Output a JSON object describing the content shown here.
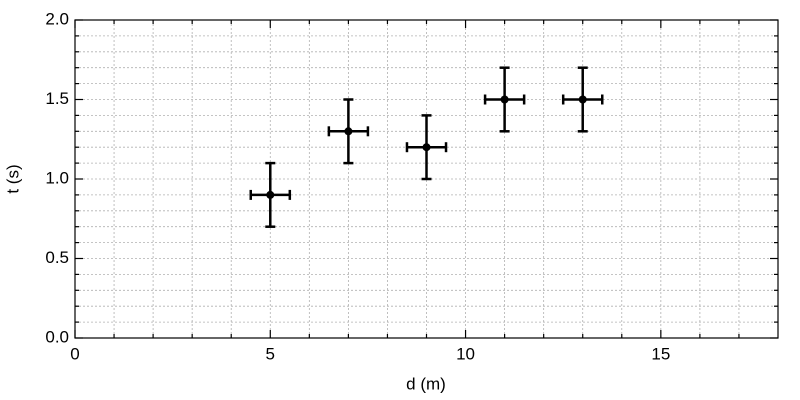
{
  "chart_data": {
    "type": "errorbar_scatter",
    "xlabel": "d (m)",
    "ylabel": "t (s)",
    "xlim": [
      0,
      18
    ],
    "ylim": [
      0,
      2
    ],
    "xticks": [
      0,
      5,
      10,
      15
    ],
    "yticks": [
      {
        "value": 0,
        "label": "0.0"
      },
      {
        "value": 0.5,
        "label": "0.5"
      },
      {
        "value": 1,
        "label": "1.0"
      },
      {
        "value": 1.5,
        "label": "1.5"
      },
      {
        "value": 2,
        "label": "2.0"
      }
    ],
    "xminorticks": [
      1,
      2,
      3,
      4,
      6,
      7,
      8,
      9,
      11,
      12,
      13,
      14,
      16,
      17
    ],
    "yminorticks": [
      0.1,
      0.2,
      0.3,
      0.4,
      0.6,
      0.7,
      0.8,
      0.9,
      1.1,
      1.2,
      1.3,
      1.4,
      1.6,
      1.7,
      1.8,
      1.9
    ],
    "grid": true,
    "series": [
      {
        "color": "#000000",
        "x": [
          5,
          7,
          9,
          11,
          13
        ],
        "values": [
          0.9,
          1.3,
          1.2,
          1.5,
          1.5
        ],
        "xerr": [
          0.5,
          0.5,
          0.5,
          0.5,
          0.5
        ],
        "yerr": [
          0.2,
          0.2,
          0.2,
          0.2,
          0.2
        ]
      }
    ]
  }
}
